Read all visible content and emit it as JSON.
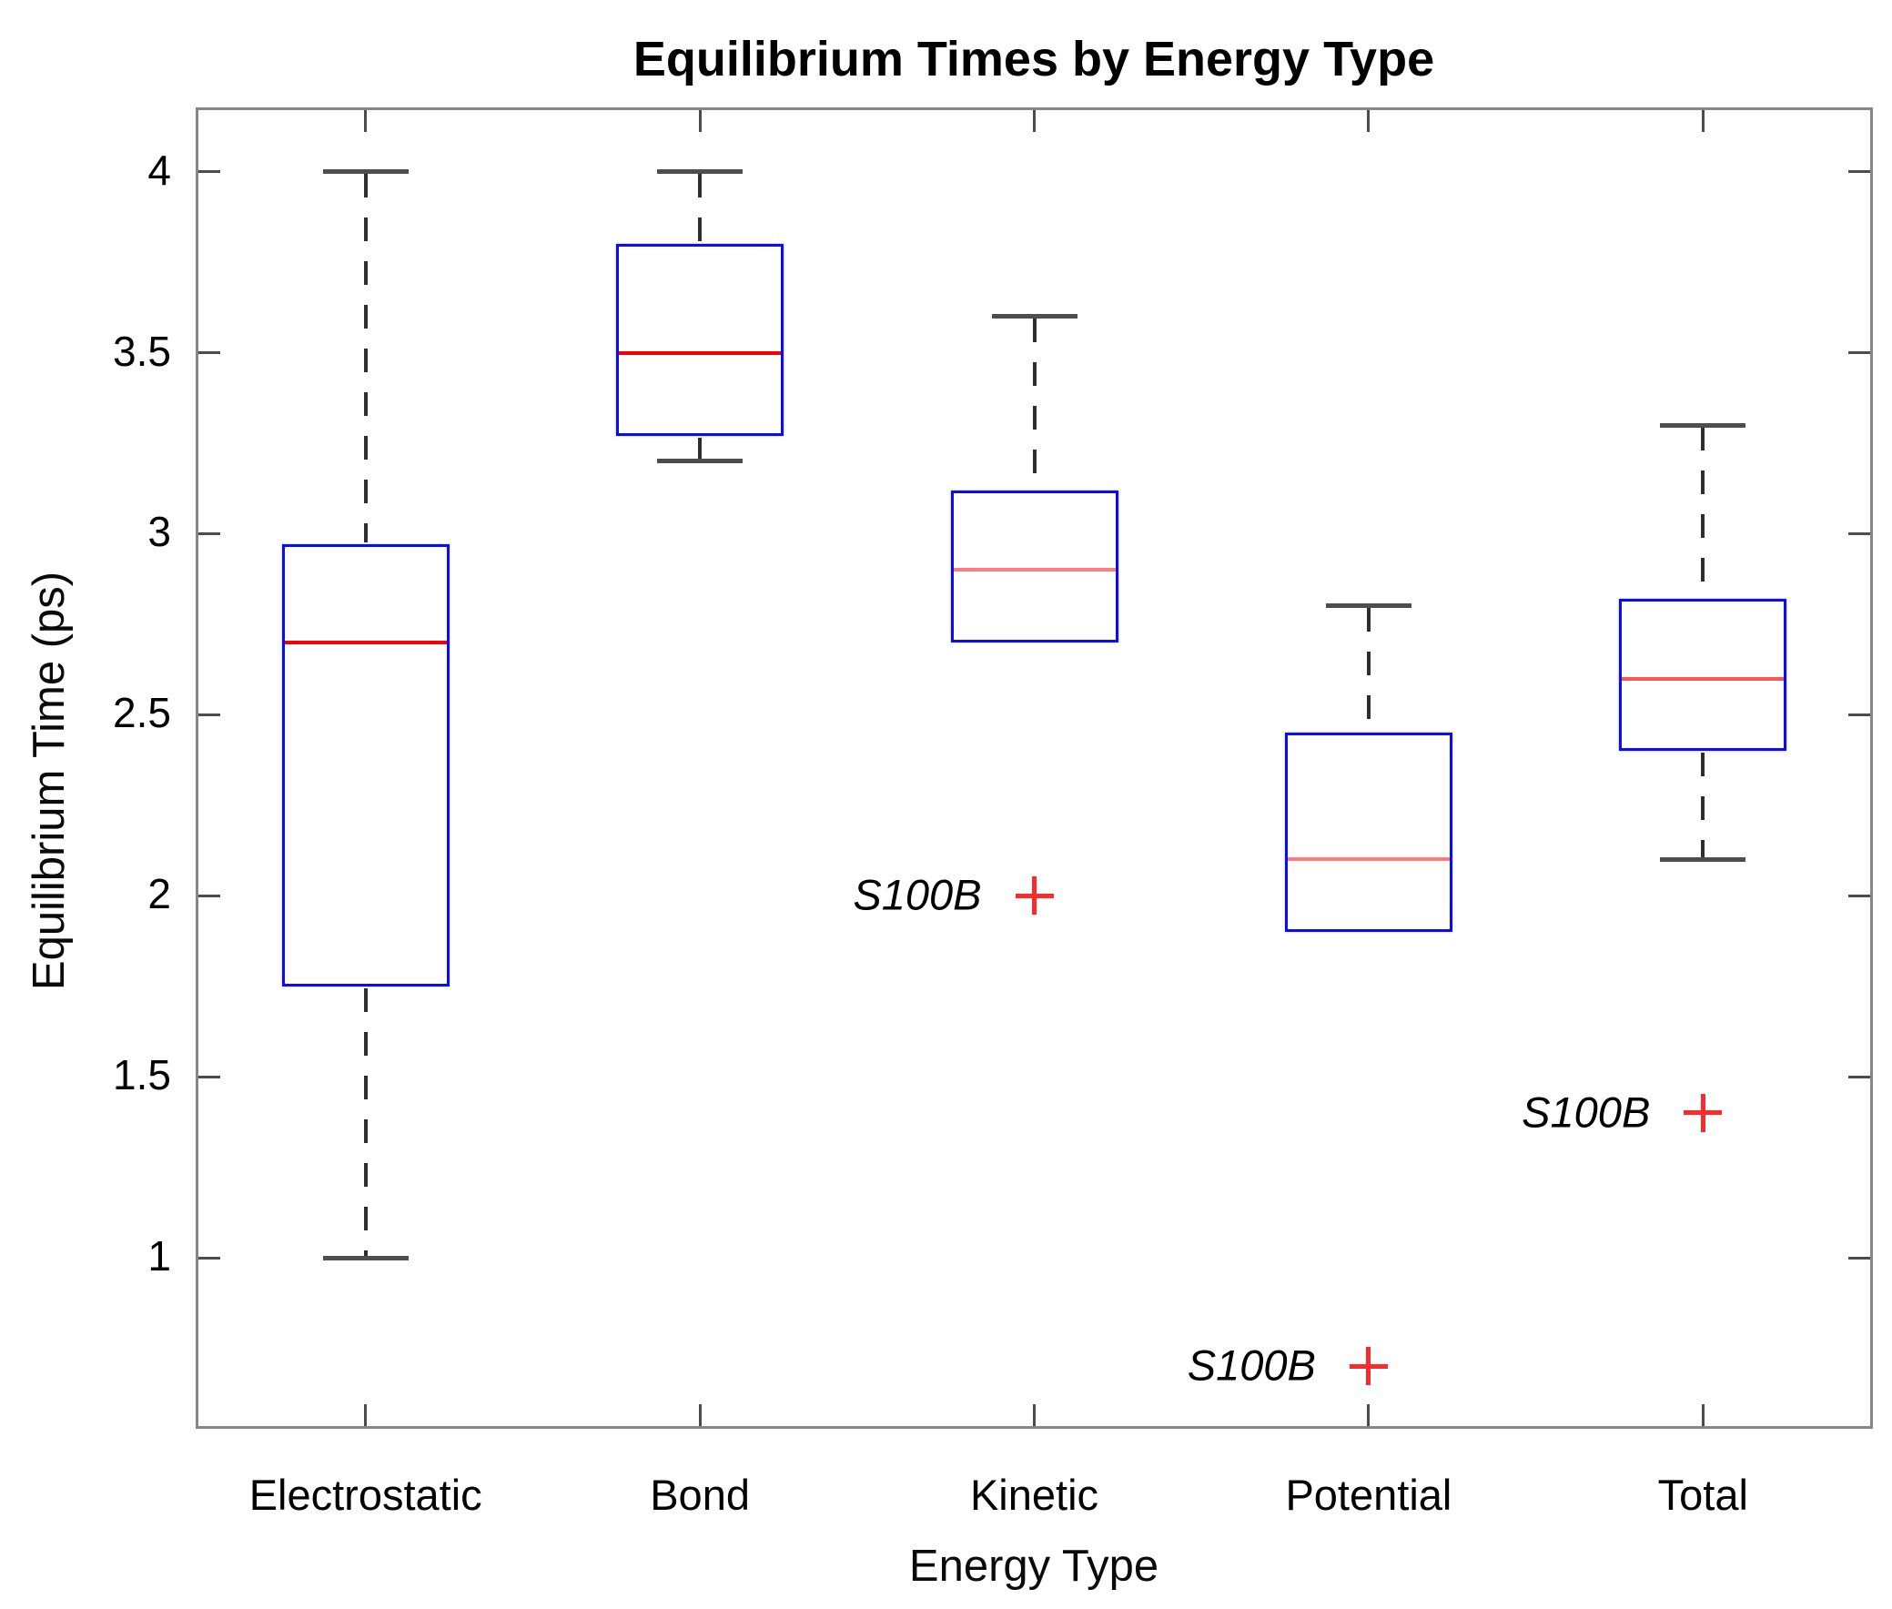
{
  "chart_data": {
    "type": "box",
    "title": "Equilibrium Times by Energy Type",
    "xlabel": "Energy Type",
    "ylabel": "Equilibrium Time (ps)",
    "categories": [
      "Electrostatic",
      "Bond",
      "Kinetic",
      "Potential",
      "Total"
    ],
    "y_ticks": [
      {
        "value": 1,
        "label": "1"
      },
      {
        "value": 1.5,
        "label": "1.5"
      },
      {
        "value": 2,
        "label": "2"
      },
      {
        "value": 2.5,
        "label": "2.5"
      },
      {
        "value": 3,
        "label": "3"
      },
      {
        "value": 3.5,
        "label": "3.5"
      },
      {
        "value": 4,
        "label": "4"
      }
    ],
    "ylim": [
      0.535,
      4.17
    ],
    "grid": false,
    "legend": "none",
    "series": [
      {
        "name": "Electrostatic",
        "whisker_low": 1.0,
        "q1": 1.75,
        "median": 2.7,
        "q3": 2.97,
        "whisker_high": 4.0,
        "median_color": "#f50000",
        "outliers": []
      },
      {
        "name": "Bond",
        "whisker_low": 3.2,
        "q1": 3.27,
        "median": 3.5,
        "q3": 3.8,
        "whisker_high": 4.0,
        "median_color": "#f50000",
        "outliers": []
      },
      {
        "name": "Kinetic",
        "whisker_low": 2.7,
        "q1": 2.7,
        "median": 2.9,
        "q3": 3.12,
        "whisker_high": 3.6,
        "median_color": "#fb7d7d",
        "outliers": [
          {
            "value": 2.0,
            "label": "S100B"
          }
        ]
      },
      {
        "name": "Potential",
        "whisker_low": 1.9,
        "q1": 1.9,
        "median": 2.1,
        "q3": 2.45,
        "whisker_high": 2.8,
        "median_color": "#fb7d7d",
        "outliers": [
          {
            "value": 0.7,
            "label": "S100B"
          }
        ]
      },
      {
        "name": "Total",
        "whisker_low": 2.1,
        "q1": 2.4,
        "median": 2.6,
        "q3": 2.82,
        "whisker_high": 3.3,
        "median_color": "#fb5555",
        "outliers": [
          {
            "value": 1.4,
            "label": "S100B"
          }
        ]
      }
    ],
    "colors": {
      "box_edge": "#0b0bf5",
      "median_default": "#f50000",
      "whisker": "#2e2e2e",
      "whisker_cap": "#4e4e4e",
      "outlier_marker": "#fb2b2b",
      "axis_box": "#868686",
      "tick": "#4c4c4c",
      "text": "#000000"
    }
  }
}
